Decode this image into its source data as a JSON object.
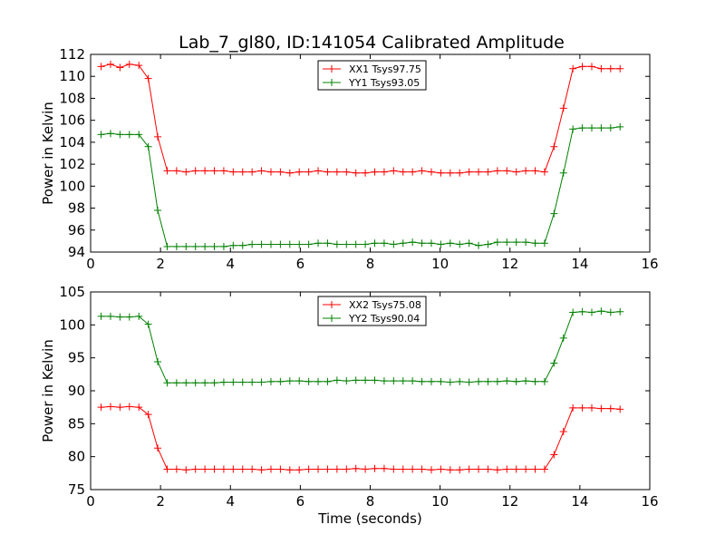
{
  "title": "Lab_7_gl80, ID:141054 Calibrated Amplitude",
  "colors": {
    "xx": "#ff0000",
    "yy": "#008000"
  },
  "chart_data": [
    {
      "type": "line",
      "xlabel": "",
      "ylabel": "Power in Kelvin",
      "xlim": [
        0,
        16
      ],
      "ylim": [
        94,
        112
      ],
      "xticks": [
        0,
        2,
        4,
        6,
        8,
        10,
        12,
        14,
        16
      ],
      "yticks": [
        94,
        96,
        98,
        100,
        102,
        104,
        106,
        108,
        110,
        112
      ],
      "legend_position": "top-center",
      "x": [
        0.3,
        0.57,
        0.84,
        1.11,
        1.38,
        1.65,
        1.92,
        2.19,
        2.46,
        2.73,
        3.0,
        3.27,
        3.54,
        3.81,
        4.08,
        4.35,
        4.62,
        4.89,
        5.16,
        5.43,
        5.7,
        5.97,
        6.24,
        6.51,
        6.78,
        7.05,
        7.32,
        7.59,
        7.86,
        8.13,
        8.4,
        8.67,
        8.94,
        9.21,
        9.48,
        9.75,
        10.02,
        10.29,
        10.56,
        10.83,
        11.1,
        11.37,
        11.64,
        11.91,
        12.18,
        12.45,
        12.72,
        12.99,
        13.26,
        13.53,
        13.8,
        14.07,
        14.34,
        14.61,
        14.88,
        15.15
      ],
      "series": [
        {
          "name": "XX1 Tsys97.75",
          "color": "#ff0000",
          "values": [
            110.9,
            111.1,
            110.8,
            111.1,
            111.0,
            109.8,
            104.5,
            101.4,
            101.4,
            101.3,
            101.4,
            101.4,
            101.4,
            101.4,
            101.3,
            101.3,
            101.3,
            101.4,
            101.3,
            101.3,
            101.2,
            101.3,
            101.3,
            101.4,
            101.3,
            101.3,
            101.3,
            101.2,
            101.2,
            101.3,
            101.3,
            101.4,
            101.3,
            101.3,
            101.4,
            101.3,
            101.2,
            101.2,
            101.2,
            101.3,
            101.3,
            101.3,
            101.4,
            101.4,
            101.3,
            101.4,
            101.4,
            101.3,
            103.6,
            107.1,
            110.7,
            110.9,
            110.9,
            110.7,
            110.7,
            110.7
          ]
        },
        {
          "name": "YY1 Tsys93.05",
          "color": "#008000",
          "values": [
            104.7,
            104.8,
            104.7,
            104.7,
            104.7,
            103.6,
            97.8,
            94.5,
            94.5,
            94.5,
            94.5,
            94.5,
            94.5,
            94.5,
            94.6,
            94.6,
            94.7,
            94.7,
            94.7,
            94.7,
            94.7,
            94.7,
            94.7,
            94.8,
            94.8,
            94.7,
            94.7,
            94.7,
            94.7,
            94.8,
            94.8,
            94.7,
            94.8,
            94.9,
            94.8,
            94.8,
            94.7,
            94.8,
            94.7,
            94.8,
            94.6,
            94.7,
            94.9,
            94.9,
            94.9,
            94.9,
            94.8,
            94.8,
            97.5,
            101.2,
            105.2,
            105.3,
            105.3,
            105.3,
            105.3,
            105.4
          ]
        }
      ]
    },
    {
      "type": "line",
      "xlabel": "Time (seconds)",
      "ylabel": "Power in Kelvin",
      "xlim": [
        0,
        16
      ],
      "ylim": [
        75,
        105
      ],
      "xticks": [
        0,
        2,
        4,
        6,
        8,
        10,
        12,
        14,
        16
      ],
      "yticks": [
        75,
        80,
        85,
        90,
        95,
        100,
        105
      ],
      "legend_position": "top-center",
      "x": [
        0.3,
        0.57,
        0.84,
        1.11,
        1.38,
        1.65,
        1.92,
        2.19,
        2.46,
        2.73,
        3.0,
        3.27,
        3.54,
        3.81,
        4.08,
        4.35,
        4.62,
        4.89,
        5.16,
        5.43,
        5.7,
        5.97,
        6.24,
        6.51,
        6.78,
        7.05,
        7.32,
        7.59,
        7.86,
        8.13,
        8.4,
        8.67,
        8.94,
        9.21,
        9.48,
        9.75,
        10.02,
        10.29,
        10.56,
        10.83,
        11.1,
        11.37,
        11.64,
        11.91,
        12.18,
        12.45,
        12.72,
        12.99,
        13.26,
        13.53,
        13.8,
        14.07,
        14.34,
        14.61,
        14.88,
        15.15
      ],
      "series": [
        {
          "name": "XX2 Tsys75.08",
          "color": "#ff0000",
          "values": [
            87.5,
            87.6,
            87.5,
            87.6,
            87.5,
            86.4,
            81.3,
            78.1,
            78.1,
            78.0,
            78.1,
            78.1,
            78.1,
            78.1,
            78.1,
            78.1,
            78.1,
            78.0,
            78.1,
            78.1,
            78.0,
            78.0,
            78.1,
            78.1,
            78.1,
            78.1,
            78.1,
            78.2,
            78.1,
            78.2,
            78.2,
            78.1,
            78.1,
            78.1,
            78.1,
            78.0,
            78.1,
            78.0,
            78.0,
            78.1,
            78.1,
            78.1,
            78.0,
            78.1,
            78.1,
            78.1,
            78.1,
            78.1,
            80.3,
            83.8,
            87.4,
            87.4,
            87.4,
            87.3,
            87.3,
            87.2
          ]
        },
        {
          "name": "YY2 Tsys90.04",
          "color": "#008000",
          "values": [
            101.3,
            101.3,
            101.2,
            101.2,
            101.3,
            100.1,
            94.4,
            91.2,
            91.2,
            91.2,
            91.2,
            91.2,
            91.2,
            91.3,
            91.3,
            91.3,
            91.3,
            91.3,
            91.4,
            91.4,
            91.5,
            91.5,
            91.4,
            91.4,
            91.4,
            91.6,
            91.5,
            91.6,
            91.6,
            91.6,
            91.5,
            91.5,
            91.5,
            91.5,
            91.4,
            91.4,
            91.4,
            91.3,
            91.4,
            91.3,
            91.4,
            91.4,
            91.4,
            91.5,
            91.4,
            91.5,
            91.4,
            91.4,
            94.2,
            98.0,
            101.9,
            102.0,
            101.9,
            102.1,
            101.9,
            102.0
          ]
        }
      ]
    }
  ]
}
